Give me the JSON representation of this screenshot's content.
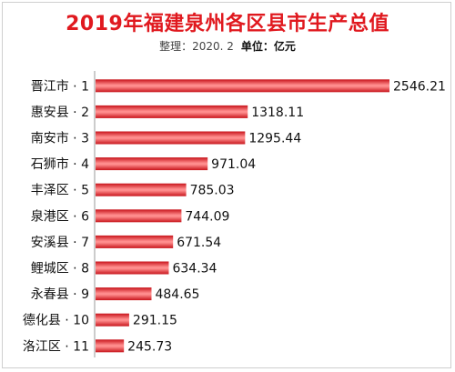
{
  "header": {
    "title": "2019年福建泉州各区县市生产总值",
    "subtitle": "整理：2020. 2",
    "unit": "单位：亿元"
  },
  "chart_data": {
    "type": "bar",
    "orientation": "horizontal",
    "title": "2019年福建泉州各区县市生产总值",
    "xlabel": "",
    "ylabel": "",
    "categories": [
      "晋江市 · 1",
      "惠安县 · 2",
      "南安市 · 3",
      "石狮市 · 4",
      "丰泽区 · 5",
      "泉港区 · 6",
      "安溪县 · 7",
      "鲤城区 · 8",
      "永春县 · 9",
      "德化县 · 10",
      "洛江区 · 11"
    ],
    "values": [
      2546.21,
      1318.11,
      1295.44,
      971.04,
      785.03,
      744.09,
      671.54,
      634.34,
      484.65,
      291.15,
      245.73
    ],
    "value_labels": [
      "2546.21",
      "1318.11",
      "1295.44",
      "971.04",
      "785.03",
      "744.09",
      "671.54",
      "634.34",
      "484.65",
      "291.15",
      "245.73"
    ],
    "xlim": [
      0,
      2546.21
    ],
    "grid": false,
    "bar_color": "#e01a22",
    "bar_highlight_color": "#ff9a9a"
  }
}
